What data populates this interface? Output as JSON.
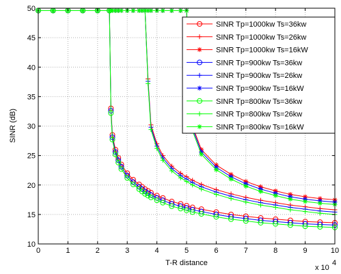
{
  "chart_data": {
    "type": "line",
    "xlabel": "T-R distance",
    "ylabel": "SINR (dB)",
    "x_multiplier": "x 10",
    "x_multiplier_exp": "4",
    "xlim": [
      0,
      100000
    ],
    "ylim": [
      10,
      50
    ],
    "x_ticks": [
      0,
      10000,
      20000,
      30000,
      40000,
      50000,
      60000,
      70000,
      80000,
      90000,
      100000
    ],
    "x_tick_labels": [
      "0",
      "1",
      "2",
      "3",
      "4",
      "5",
      "6",
      "7",
      "8",
      "9",
      "10"
    ],
    "y_ticks": [
      10,
      15,
      20,
      25,
      30,
      35,
      40,
      45,
      50
    ],
    "y_tick_labels": [
      "10",
      "15",
      "20",
      "25",
      "30",
      "35",
      "40",
      "45",
      "50"
    ],
    "grid": true,
    "legend_position": "top-right",
    "x": [
      0,
      5000,
      10000,
      15000,
      20000,
      24000,
      24500,
      25000,
      26000,
      27000,
      28000,
      30000,
      32000,
      34000,
      35000,
      36000,
      37000,
      38000,
      40000,
      42000,
      45000,
      48000,
      50000,
      52000,
      55000,
      60000,
      65000,
      70000,
      75000,
      80000,
      85000,
      90000,
      95000,
      100000
    ],
    "series": [
      {
        "name": "SINR Tp=1000kw Ts=36kw",
        "color": "#ff0000",
        "marker": "circle",
        "values": [
          49.6,
          49.6,
          49.6,
          49.6,
          49.6,
          49.6,
          33.0,
          28.5,
          26.0,
          24.6,
          23.5,
          22.0,
          20.9,
          20.1,
          19.7,
          19.3,
          19.0,
          18.7,
          18.2,
          17.8,
          17.2,
          16.8,
          16.5,
          16.2,
          15.9,
          15.4,
          15.0,
          14.7,
          14.4,
          14.2,
          14.0,
          13.8,
          13.7,
          13.6
        ]
      },
      {
        "name": "SINR Tp=1000kw Ts=26kw",
        "color": "#ff0000",
        "marker": "plus",
        "values": [
          49.6,
          49.6,
          49.6,
          49.6,
          49.6,
          49.6,
          49.6,
          49.6,
          49.6,
          49.6,
          49.6,
          49.6,
          49.6,
          49.6,
          49.6,
          49.6,
          38.0,
          30.2,
          27.0,
          25.0,
          23.2,
          22.0,
          21.4,
          20.8,
          20.1,
          19.2,
          18.5,
          17.9,
          17.4,
          17.0,
          16.6,
          16.3,
          16.0,
          15.8
        ]
      },
      {
        "name": "SINR Tp=1000kw Ts=16kW",
        "color": "#ff0000",
        "marker": "star",
        "values": [
          49.6,
          49.6,
          49.6,
          49.6,
          49.6,
          49.6,
          49.6,
          49.6,
          49.6,
          49.6,
          49.6,
          49.6,
          49.6,
          49.6,
          49.6,
          49.6,
          49.6,
          49.6,
          49.6,
          49.6,
          49.6,
          49.6,
          49.6,
          30.0,
          26.0,
          23.4,
          21.8,
          20.6,
          19.7,
          19.0,
          18.4,
          18.0,
          17.7,
          17.5
        ]
      },
      {
        "name": "SINR Tp=900kw Ts=36kw",
        "color": "#0000ff",
        "marker": "circle",
        "values": [
          49.6,
          49.6,
          49.6,
          49.6,
          49.6,
          49.6,
          32.6,
          28.1,
          25.6,
          24.2,
          23.1,
          21.6,
          20.5,
          19.7,
          19.3,
          18.9,
          18.6,
          18.3,
          17.8,
          17.4,
          16.8,
          16.4,
          16.1,
          15.8,
          15.5,
          15.0,
          14.6,
          14.3,
          14.0,
          13.8,
          13.6,
          13.4,
          13.3,
          13.2
        ]
      },
      {
        "name": "SINR Tp=900kw Ts=26kw",
        "color": "#0000ff",
        "marker": "plus",
        "values": [
          49.6,
          49.6,
          49.6,
          49.6,
          49.6,
          49.6,
          49.6,
          49.6,
          49.6,
          49.6,
          49.6,
          49.6,
          49.6,
          49.6,
          49.6,
          49.6,
          37.6,
          29.8,
          26.6,
          24.6,
          22.8,
          21.6,
          21.0,
          20.4,
          19.7,
          18.8,
          18.1,
          17.5,
          17.0,
          16.6,
          16.2,
          15.9,
          15.6,
          15.4
        ]
      },
      {
        "name": "SINR Tp=900kw Ts=16kW",
        "color": "#0000ff",
        "marker": "star",
        "values": [
          49.6,
          49.6,
          49.6,
          49.6,
          49.6,
          49.6,
          49.6,
          49.6,
          49.6,
          49.6,
          49.6,
          49.6,
          49.6,
          49.6,
          49.6,
          49.6,
          49.6,
          49.6,
          49.6,
          49.6,
          49.6,
          49.6,
          49.6,
          29.6,
          25.6,
          23.0,
          21.4,
          20.2,
          19.3,
          18.6,
          18.0,
          17.6,
          17.3,
          17.1
        ]
      },
      {
        "name": "SINR Tp=800kw Ts=36kw",
        "color": "#00ff00",
        "marker": "circle",
        "values": [
          49.6,
          49.6,
          49.6,
          49.6,
          49.6,
          49.6,
          32.2,
          27.7,
          25.2,
          23.8,
          22.7,
          21.2,
          20.1,
          19.3,
          18.9,
          18.5,
          18.2,
          17.9,
          17.4,
          17.0,
          16.4,
          16.0,
          15.7,
          15.4,
          15.1,
          14.6,
          14.2,
          13.9,
          13.6,
          13.4,
          13.2,
          13.0,
          12.9,
          12.8
        ]
      },
      {
        "name": "SINR Tp=800kw Ts=26kw",
        "color": "#00ff00",
        "marker": "plus",
        "values": [
          49.6,
          49.6,
          49.6,
          49.6,
          49.6,
          49.6,
          49.6,
          49.6,
          49.6,
          49.6,
          49.6,
          49.6,
          49.6,
          49.6,
          49.6,
          49.6,
          37.2,
          29.4,
          26.2,
          24.2,
          22.4,
          21.2,
          20.6,
          20.0,
          19.3,
          18.4,
          17.7,
          17.1,
          16.6,
          16.2,
          15.8,
          15.5,
          15.2,
          15.0
        ]
      },
      {
        "name": "SINR Tp=800kw Ts=16kW",
        "color": "#00ff00",
        "marker": "star",
        "values": [
          49.6,
          49.6,
          49.6,
          49.6,
          49.6,
          49.6,
          49.6,
          49.6,
          49.6,
          49.6,
          49.6,
          49.6,
          49.6,
          49.6,
          49.6,
          49.6,
          49.6,
          49.6,
          49.6,
          49.6,
          49.6,
          49.6,
          49.6,
          29.2,
          25.2,
          22.6,
          21.0,
          19.8,
          18.9,
          18.2,
          17.6,
          17.2,
          16.9,
          16.7
        ]
      }
    ]
  }
}
